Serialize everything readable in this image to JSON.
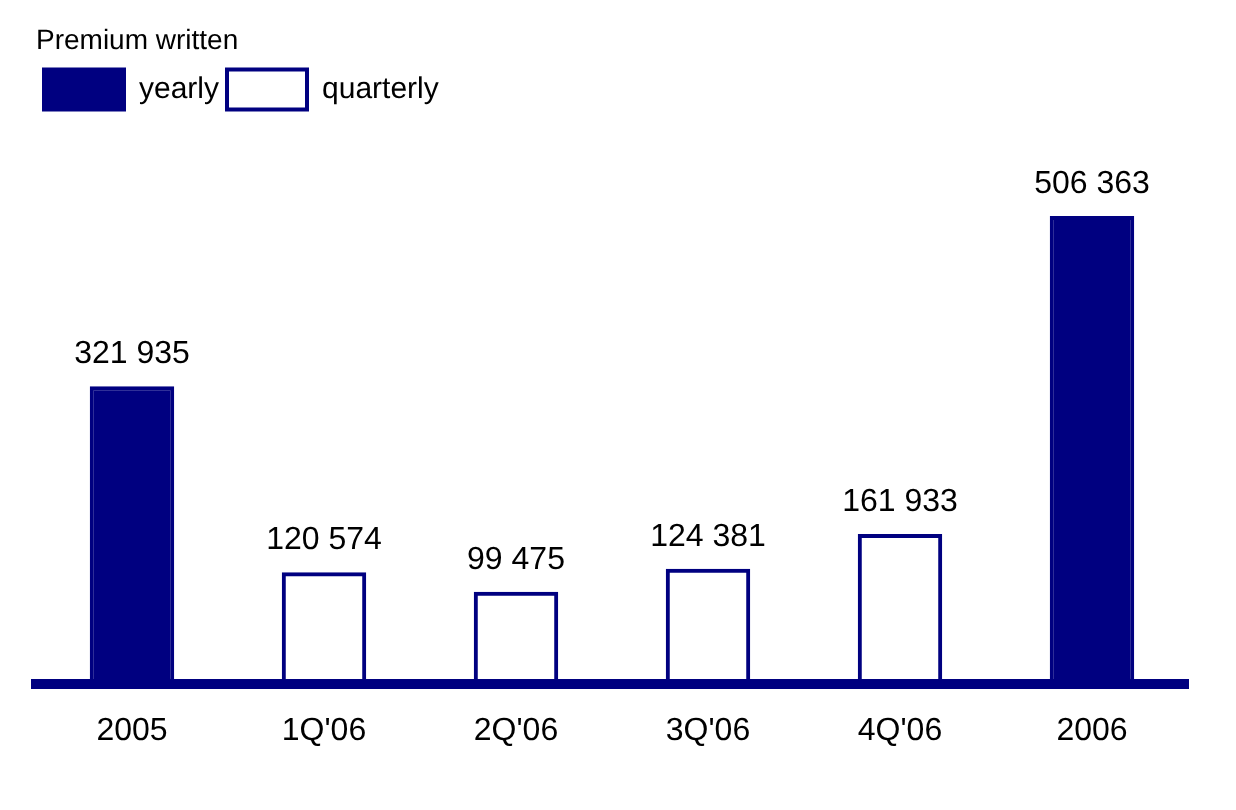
{
  "chart_data": {
    "type": "bar",
    "title": "Premium written",
    "categories": [
      "2005",
      "1Q'06",
      "2Q'06",
      "3Q'06",
      "4Q'06",
      "2006"
    ],
    "series": [
      {
        "name": "yearly",
        "color": "#000080",
        "values": [
          321935,
          null,
          null,
          null,
          null,
          506363
        ],
        "value_labels": [
          "321 935",
          null,
          null,
          null,
          null,
          "506 363"
        ]
      },
      {
        "name": "quarterly",
        "color": "#000080",
        "values": [
          null,
          120574,
          99475,
          124381,
          161933,
          null
        ],
        "value_labels": [
          null,
          "120 574",
          "99 475",
          "124 381",
          "161 933",
          null
        ]
      }
    ],
    "legend": "top left",
    "grid": false,
    "tick_labels": "x"
  }
}
